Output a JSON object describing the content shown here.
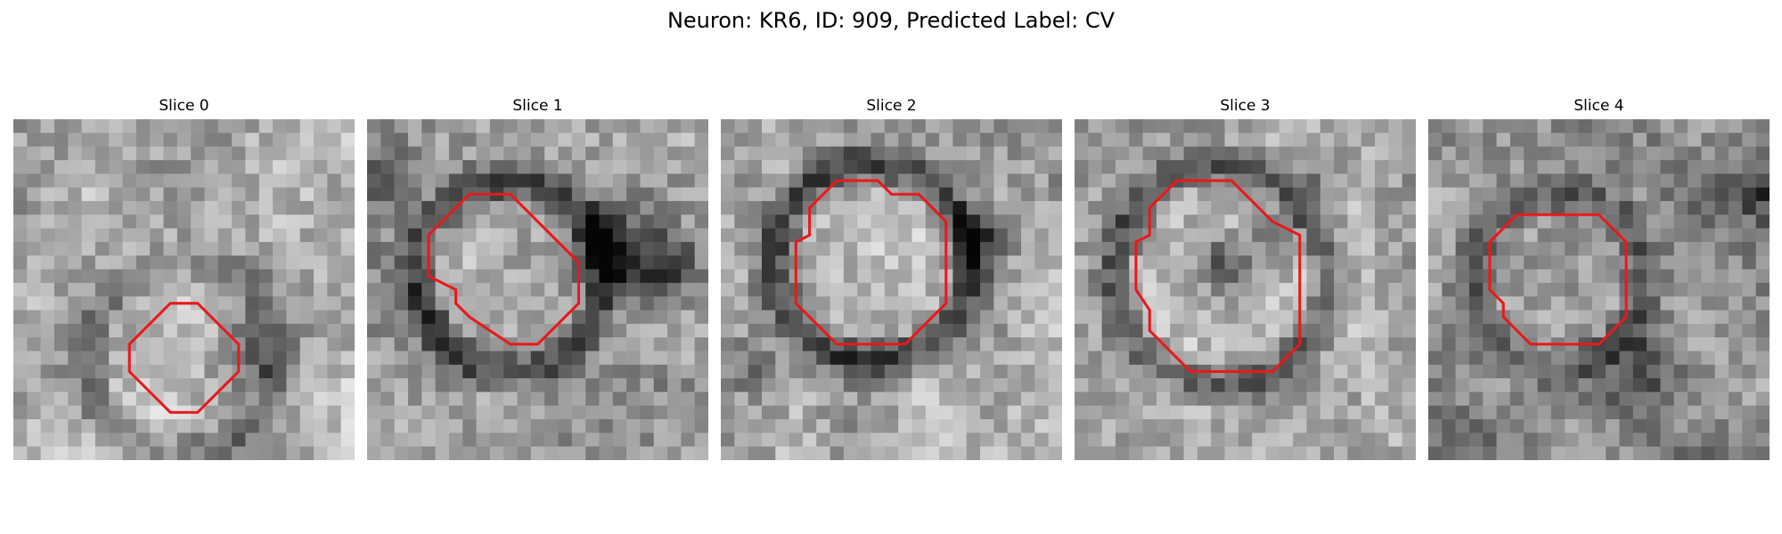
{
  "figure": {
    "title": "Neuron: KR6, ID: 909, Predicted Label: CV"
  },
  "slices": [
    {
      "label": "Slice 0",
      "contour_color": "#e8191b",
      "contour": [
        [
          8.5,
          16.5
        ],
        [
          11.5,
          13.5
        ],
        [
          13.5,
          13.5
        ],
        [
          16.5,
          16.5
        ],
        [
          16.5,
          18.5
        ],
        [
          13.5,
          21.5
        ],
        [
          11.5,
          21.5
        ],
        [
          8.5,
          18.5
        ]
      ],
      "image_seed": 11,
      "tone_mean": 0.68,
      "ring_radius": 7.2,
      "ring_center": [
        12.5,
        17.5
      ],
      "ring_strength": 0.18,
      "extra_dark": [
        [
          17.5,
          15.5,
          3.0,
          0.28
        ],
        [
          17.5,
          18.0,
          2.0,
          0.22
        ]
      ]
    },
    {
      "label": "Slice 1",
      "contour_color": "#e8191b",
      "contour": [
        [
          4.5,
          8.5
        ],
        [
          7.5,
          5.5
        ],
        [
          10.5,
          5.5
        ],
        [
          15.5,
          10.5
        ],
        [
          15.5,
          13.5
        ],
        [
          12.5,
          16.5
        ],
        [
          10.5,
          16.5
        ],
        [
          7.5,
          14.5
        ],
        [
          6.5,
          13.5
        ],
        [
          6.5,
          12.5
        ],
        [
          4.5,
          11.5
        ]
      ],
      "image_seed": 23,
      "tone_mean": 0.62,
      "ring_radius": 7.0,
      "ring_center": [
        10.5,
        11.5
      ],
      "ring_strength": 0.35,
      "extra_dark": [
        [
          17.5,
          9.5,
          3.0,
          0.35
        ],
        [
          22.0,
          11.0,
          2.5,
          0.4
        ],
        [
          2.0,
          4.5,
          2.0,
          0.3
        ]
      ]
    },
    {
      "label": "Slice 2",
      "contour_color": "#e8191b",
      "contour": [
        [
          6.5,
          6.5
        ],
        [
          8.5,
          4.5
        ],
        [
          11.5,
          4.5
        ],
        [
          12.5,
          5.5
        ],
        [
          14.5,
          5.5
        ],
        [
          16.5,
          7.5
        ],
        [
          16.5,
          13.5
        ],
        [
          13.5,
          16.5
        ],
        [
          8.5,
          16.5
        ],
        [
          5.5,
          13.5
        ],
        [
          5.5,
          9.0
        ],
        [
          6.5,
          8.5
        ]
      ],
      "image_seed": 37,
      "tone_mean": 0.66,
      "ring_radius": 7.3,
      "ring_center": [
        11.0,
        10.5
      ],
      "ring_strength": 0.38,
      "extra_dark": [
        [
          18.5,
          9.0,
          2.5,
          0.35
        ],
        [
          2.0,
          18.0,
          2.0,
          0.2
        ]
      ]
    },
    {
      "label": "Slice 3",
      "contour_color": "#e8191b",
      "contour": [
        [
          5.5,
          6.5
        ],
        [
          7.5,
          4.5
        ],
        [
          11.5,
          4.5
        ],
        [
          12.5,
          5.5
        ],
        [
          14.5,
          7.5
        ],
        [
          16.5,
          8.5
        ],
        [
          16.5,
          16.5
        ],
        [
          14.5,
          18.5
        ],
        [
          8.5,
          18.5
        ],
        [
          5.5,
          15.5
        ],
        [
          5.5,
          14.0
        ],
        [
          4.5,
          12.5
        ],
        [
          4.5,
          9.0
        ],
        [
          5.5,
          8.5
        ]
      ],
      "image_seed": 53,
      "tone_mean": 0.68,
      "ring_radius": 8.0,
      "ring_center": [
        10.8,
        11.5
      ],
      "ring_strength": 0.32,
      "extra_dark": [
        [
          11.0,
          10.5,
          1.8,
          0.3
        ],
        [
          15.0,
          8.0,
          2.0,
          0.25
        ],
        [
          18.0,
          4.0,
          2.5,
          0.2
        ]
      ]
    },
    {
      "label": "Slice 4",
      "contour_color": "#e8191b",
      "contour": [
        [
          4.5,
          9.0
        ],
        [
          6.5,
          7.0
        ],
        [
          12.5,
          7.0
        ],
        [
          14.5,
          9.0
        ],
        [
          14.5,
          14.5
        ],
        [
          12.5,
          16.5
        ],
        [
          7.5,
          16.5
        ],
        [
          5.5,
          14.5
        ],
        [
          5.5,
          13.5
        ],
        [
          4.5,
          12.5
        ]
      ],
      "image_seed": 71,
      "tone_mean": 0.55,
      "ring_radius": 6.5,
      "ring_center": [
        9.5,
        11.8
      ],
      "ring_strength": 0.22,
      "extra_dark": [
        [
          24.5,
          5.0,
          2.5,
          0.3
        ],
        [
          16.5,
          18.5,
          3.0,
          0.2
        ]
      ]
    }
  ]
}
